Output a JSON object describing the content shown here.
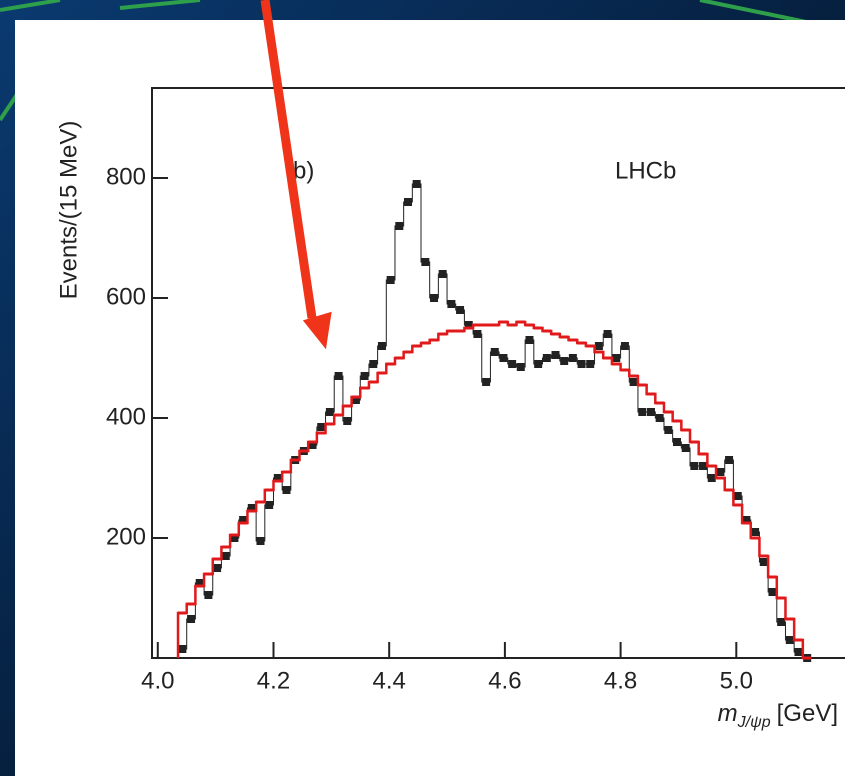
{
  "chart_data": {
    "type": "histogram",
    "y_label": "Events/(15 MeV)",
    "x_label_symbol": "m",
    "x_label_subscript": "J/ψp",
    "x_label_unit": "[GeV]",
    "annotations": [
      "(b)",
      "LHCb"
    ],
    "xlim": [
      3.99,
      5.2
    ],
    "ylim": [
      0,
      950
    ],
    "xticks": [
      {
        "value": 4,
        "label": "4.0"
      },
      4.2,
      4.4,
      4.6,
      4.8,
      {
        "value": 5,
        "label": "5.0"
      }
    ],
    "yticks": [
      200,
      400,
      600,
      800
    ],
    "bins": [
      4.035,
      4.05,
      4.065,
      4.08,
      4.095,
      4.11,
      4.125,
      4.14,
      4.155,
      4.17,
      4.185,
      4.2,
      4.215,
      4.23,
      4.245,
      4.26,
      4.275,
      4.29,
      4.305,
      4.32,
      4.335,
      4.35,
      4.365,
      4.38,
      4.395,
      4.41,
      4.425,
      4.44,
      4.455,
      4.47,
      4.485,
      4.5,
      4.515,
      4.53,
      4.545,
      4.56,
      4.575,
      4.59,
      4.605,
      4.62,
      4.635,
      4.65,
      4.665,
      4.68,
      4.695,
      4.71,
      4.725,
      4.74,
      4.755,
      4.77,
      4.785,
      4.8,
      4.815,
      4.83,
      4.845,
      4.86,
      4.875,
      4.89,
      4.905,
      4.92,
      4.935,
      4.95,
      4.965,
      4.98,
      4.995,
      5.01,
      5.025,
      5.04,
      5.055,
      5.07,
      5.085,
      5.1,
      5.115,
      5.13
    ],
    "series": [
      {
        "color": "#222222",
        "marker": "square",
        "values": [
          15,
          65,
          125,
          105,
          150,
          170,
          200,
          230,
          250,
          195,
          255,
          300,
          280,
          330,
          345,
          355,
          385,
          410,
          470,
          395,
          430,
          470,
          490,
          520,
          630,
          720,
          760,
          790,
          660,
          600,
          640,
          590,
          580,
          555,
          540,
          460,
          510,
          500,
          490,
          485,
          530,
          490,
          500,
          505,
          495,
          500,
          490,
          490,
          520,
          540,
          500,
          520,
          460,
          410,
          410,
          400,
          380,
          360,
          350,
          320,
          320,
          300,
          310,
          330,
          270,
          230,
          210,
          160,
          110,
          60,
          30,
          10,
          0
        ]
      },
      {
        "color": "#e0191b",
        "marker": "step",
        "values": [
          75,
          90,
          120,
          140,
          165,
          185,
          205,
          225,
          245,
          260,
          280,
          295,
          310,
          330,
          345,
          360,
          375,
          390,
          405,
          420,
          435,
          450,
          460,
          475,
          490,
          500,
          510,
          520,
          525,
          530,
          540,
          545,
          545,
          550,
          555,
          555,
          555,
          560,
          555,
          560,
          555,
          550,
          545,
          540,
          535,
          530,
          525,
          520,
          510,
          500,
          490,
          480,
          470,
          455,
          440,
          425,
          410,
          395,
          380,
          360,
          340,
          320,
          300,
          280,
          255,
          225,
          200,
          170,
          135,
          100,
          65,
          30,
          0
        ]
      }
    ]
  }
}
